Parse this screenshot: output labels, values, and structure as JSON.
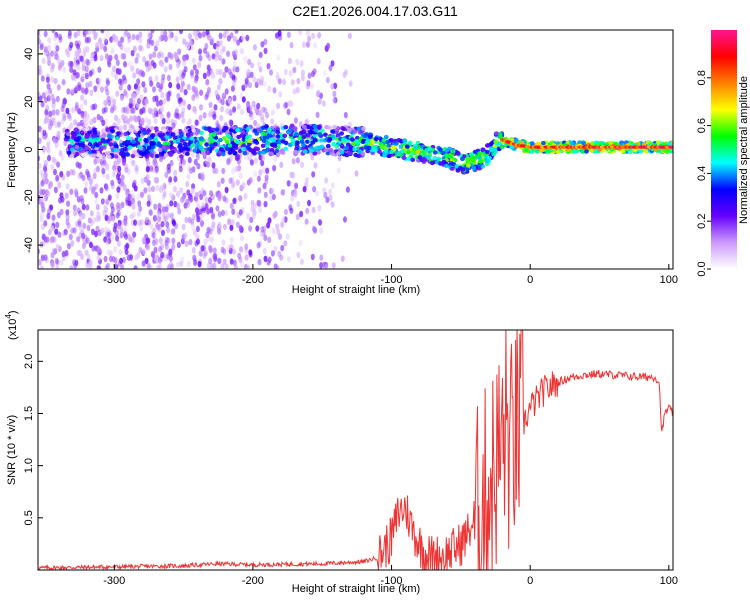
{
  "title": "C2E1.2026.004.17.03.G11",
  "chart_data": [
    {
      "type": "heatmap",
      "name": "spectrogram",
      "xlabel": "Height of straight line (km)",
      "ylabel": "Frequency (Hz)",
      "xlim": [
        -355,
        103
      ],
      "ylim": [
        -50,
        50
      ],
      "x_ticks": [
        -300,
        -200,
        -100,
        0,
        100
      ],
      "y_ticks": [
        -40,
        -20,
        0,
        20,
        40
      ],
      "colorbar": {
        "label": "Normalized spectral amplitude",
        "range": [
          0,
          1
        ],
        "ticks": [
          0.0,
          0.2,
          0.4,
          0.6,
          0.8
        ],
        "colors": [
          "#ffffff",
          "#cc99ff",
          "#6600ff",
          "#0000ff",
          "#00ffff",
          "#00ff00",
          "#ffff00",
          "#ff7f00",
          "#ff0000",
          "#ff1493"
        ]
      },
      "ridge": {
        "x": [
          -330,
          -300,
          -250,
          -200,
          -150,
          -120,
          -100,
          -80,
          -60,
          -50,
          -40,
          -30,
          -25,
          -20,
          -10,
          0,
          20,
          50,
          80,
          100
        ],
        "y": [
          3,
          3,
          3,
          4,
          4,
          3,
          1,
          -1,
          -3,
          -6,
          -5,
          -2,
          3,
          4,
          2,
          1,
          1,
          1,
          1,
          1
        ]
      }
    },
    {
      "type": "line",
      "name": "snr",
      "xlabel": "Height of straight line (km)",
      "ylabel": "SNR (10 * v/v)",
      "y_multiplier": "(x10",
      "y_multiplier_exp": "4",
      "y_multiplier_close": ")",
      "xlim": [
        -355,
        103
      ],
      "ylim": [
        0,
        2.3
      ],
      "x_ticks": [
        -300,
        -200,
        -100,
        0,
        100
      ],
      "y_ticks": [
        0.5,
        1.0,
        1.5,
        2.0
      ],
      "y_tick_labels": [
        "0.5",
        "1.0",
        "1.5",
        "2.0"
      ],
      "color": "#ee3333",
      "series": [
        {
          "x": [
            -355,
            -300,
            -250,
            -225,
            -200,
            -150,
            -120,
            -110,
            -100,
            -95,
            -90,
            -85,
            -80,
            -75,
            -70,
            -60,
            -50,
            -45,
            -40,
            -35,
            -30,
            -25,
            -20,
            -17,
            -15,
            -10,
            -5,
            0,
            10,
            20,
            30,
            40,
            50,
            60,
            70,
            80,
            90,
            93,
            95,
            97,
            100,
            103
          ],
          "y": [
            0.02,
            0.03,
            0.04,
            0.06,
            0.05,
            0.06,
            0.08,
            0.12,
            0.3,
            0.55,
            0.6,
            0.4,
            0.25,
            0.15,
            0.12,
            0.15,
            0.25,
            0.35,
            0.5,
            0.6,
            0.8,
            1.0,
            1.2,
            1.4,
            1.1,
            1.3,
            1.4,
            1.55,
            1.72,
            1.8,
            1.85,
            1.87,
            1.88,
            1.87,
            1.86,
            1.85,
            1.85,
            1.8,
            1.3,
            1.5,
            1.55,
            1.5
          ]
        }
      ]
    }
  ]
}
